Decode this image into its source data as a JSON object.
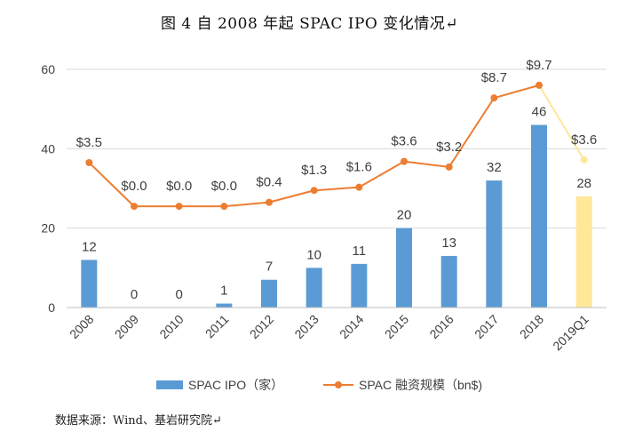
{
  "title": "图 4 自 2008 年起 SPAC IPO 变化情况↵",
  "source": "数据来源：Wind、基岩研究院↵",
  "chart_data": {
    "type": "bar+line",
    "categories": [
      "2008",
      "2009",
      "2010",
      "2011",
      "2012",
      "2013",
      "2014",
      "2015",
      "2016",
      "2017",
      "2018",
      "2019Q1"
    ],
    "y_ticks": [
      0,
      20,
      40,
      60
    ],
    "ylim": [
      0,
      60
    ],
    "series": [
      {
        "name": "SPAC IPO（家）",
        "kind": "bar",
        "values": [
          12,
          0,
          0,
          1,
          7,
          10,
          11,
          20,
          13,
          32,
          46,
          28
        ],
        "labels": [
          "12",
          "0",
          "0",
          "1",
          "7",
          "10",
          "11",
          "20",
          "13",
          "32",
          "46",
          "28"
        ],
        "color": "#5B9BD5",
        "highlight_color": "#FFE699"
      },
      {
        "name": "SPAC 融资规模（bn$)",
        "kind": "line",
        "values": [
          3.5,
          0.0,
          0.0,
          0.0,
          0.4,
          1.3,
          1.6,
          3.6,
          3.2,
          8.7,
          9.7,
          3.6
        ],
        "plot_positions": [
          36.5,
          25.5,
          25.5,
          25.5,
          26.5,
          29.5,
          30.3,
          36.8,
          35.4,
          52.8,
          56.0,
          37.2
        ],
        "labels": [
          "$3.5",
          "$0.0",
          "$0.0",
          "$0.0",
          "$0.4",
          "$1.3",
          "$1.6",
          "$3.6",
          "$3.2",
          "$8.7",
          "$9.7",
          "$3.6"
        ],
        "color": "#ED7D31",
        "highlight_color": "#FFE699"
      }
    ],
    "legend": [
      "SPAC IPO（家）",
      "SPAC 融资规模（bn$)"
    ],
    "grid": true
  }
}
